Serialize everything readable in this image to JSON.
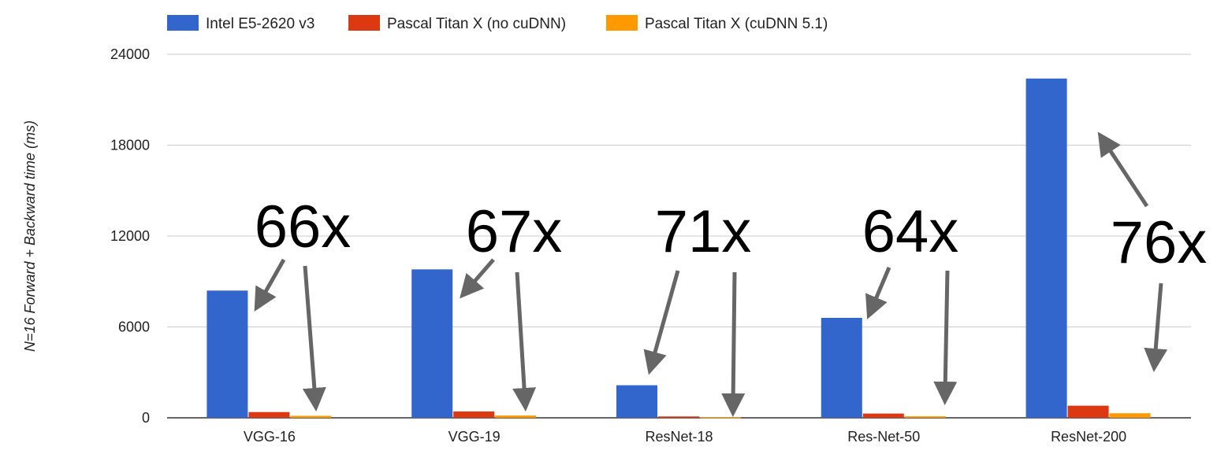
{
  "chart_data": {
    "type": "bar",
    "categories": [
      "VGG-16",
      "VGG-19",
      "ResNet-18",
      "Res-Net-50",
      "ResNet-200"
    ],
    "series": [
      {
        "name": "Intel E5-2620 v3",
        "color": "#3366cc",
        "values": [
          8400,
          9800,
          2150,
          6600,
          22400
        ]
      },
      {
        "name": "Pascal Titan X (no cuDNN)",
        "color": "#dc3912",
        "values": [
          380,
          420,
          90,
          280,
          800
        ]
      },
      {
        "name": "Pascal Titan X (cuDNN 5.1)",
        "color": "#ff9900",
        "values": [
          130,
          150,
          30,
          100,
          300
        ]
      }
    ],
    "ylabel": "N=16 Forward + Backward time (ms)",
    "xlabel": "",
    "ylim": [
      0,
      24000
    ],
    "yticks": [
      0,
      6000,
      12000,
      18000,
      24000
    ],
    "yticklabels": [
      "0",
      "6000",
      "12000",
      "18000",
      "24000"
    ],
    "grid": true,
    "legend_position": "top-left",
    "annotations": [
      {
        "category": "VGG-16",
        "text": "66x"
      },
      {
        "category": "VGG-19",
        "text": "67x"
      },
      {
        "category": "ResNet-18",
        "text": "71x"
      },
      {
        "category": "Res-Net-50",
        "text": "64x"
      },
      {
        "category": "ResNet-200",
        "text": "76x"
      }
    ],
    "arrow_color": "#666666"
  }
}
